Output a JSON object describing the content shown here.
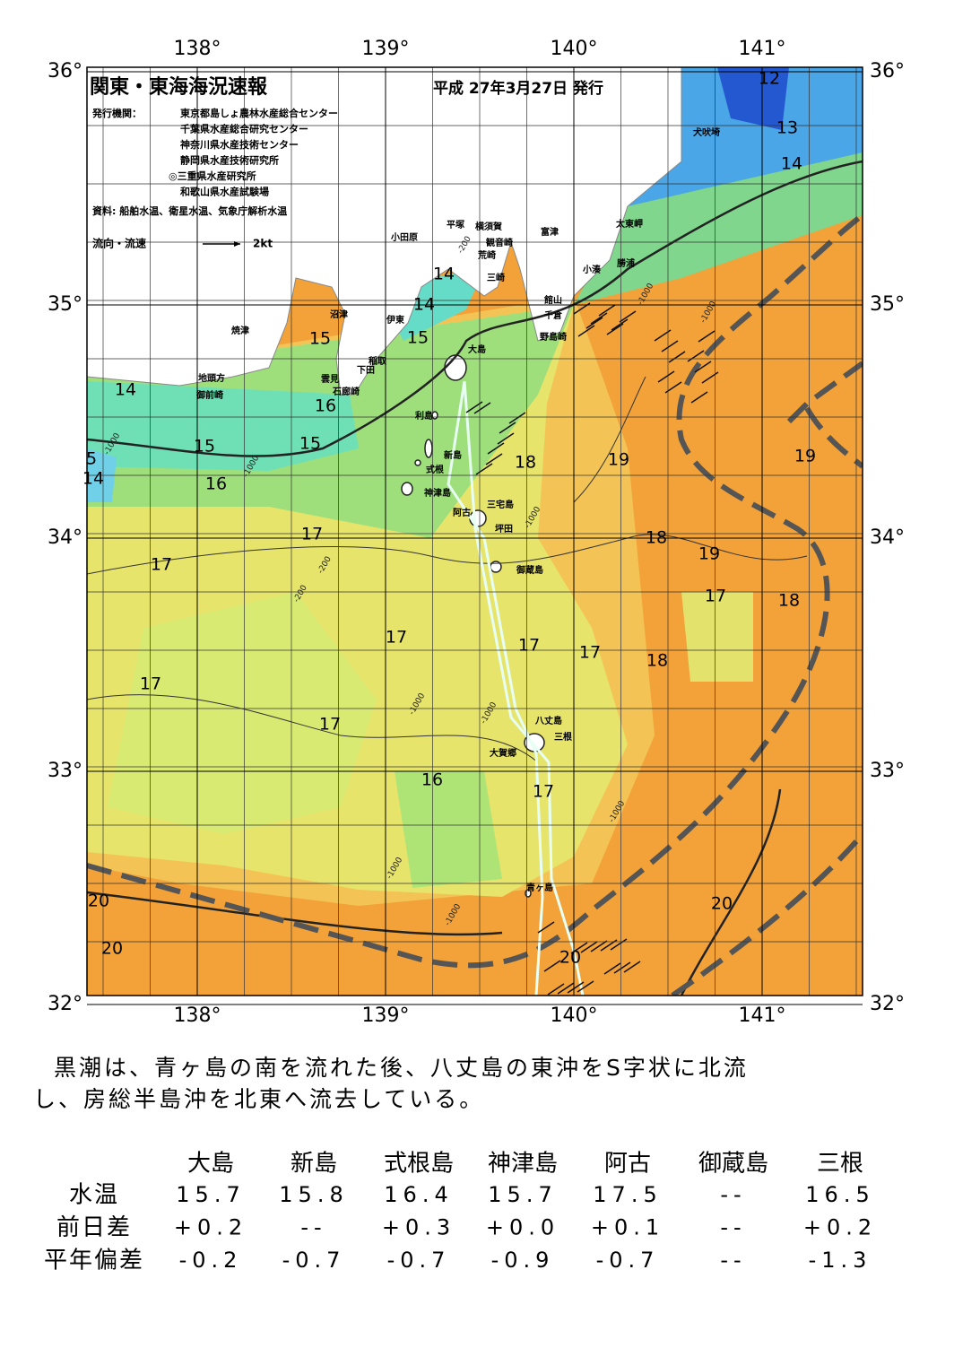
{
  "header": {
    "title": "関東・東海海況速報",
    "issued": "平成 27年3月27日 発行",
    "publisher_label": "発行機関：",
    "publishers": [
      "東京都島しょ農林水産総合センター",
      "千葉県水産総合研究センター",
      "神奈川県水産技術センター",
      "静岡県水産技術研究所",
      "◎三重県水産研究所",
      "和歌山県水産試験場"
    ],
    "sources": "資料: 船舶水温、衛星水温、気象庁解析水温",
    "legend_label": "流向・流速",
    "legend_speed": "2kt"
  },
  "map": {
    "lon_ticks": [
      {
        "value": 138,
        "label": "138°"
      },
      {
        "value": 139,
        "label": "139°"
      },
      {
        "value": 140,
        "label": "140°"
      },
      {
        "value": 141,
        "label": "141°"
      }
    ],
    "lat_ticks": [
      {
        "value": 36,
        "label": "36°"
      },
      {
        "value": 35,
        "label": "35°"
      },
      {
        "value": 34,
        "label": "34°"
      },
      {
        "value": 33,
        "label": "33°"
      },
      {
        "value": 32,
        "label": "32°"
      }
    ],
    "isotherm_labels": [
      "12",
      "13",
      "14",
      "14",
      "14",
      "15",
      "15",
      "14",
      "16",
      "15",
      "15",
      "5",
      "14",
      "16",
      "18",
      "19",
      "19",
      "17",
      "18",
      "17",
      "19",
      "17",
      "18",
      "17",
      "17",
      "17",
      "18",
      "17",
      "17",
      "16",
      "17",
      "20",
      "20",
      "20",
      "20"
    ],
    "depth_labels": [
      "-200",
      "-200",
      "-1000",
      "-1000",
      "-1000",
      "-200",
      "-1000",
      "-1000",
      "-1000",
      "-1000",
      "-1000",
      "-1000",
      "-1000"
    ],
    "places": [
      "犬吠埼",
      "太東岬",
      "勝浦",
      "小湊",
      "富津",
      "横須賀",
      "観音崎",
      "平塚",
      "荒崎",
      "三崎",
      "小田原",
      "館山",
      "千倉",
      "野島崎",
      "沼津",
      "伊東",
      "焼津",
      "稲取",
      "下田",
      "雲見",
      "石廊崎",
      "地頭方",
      "御前崎",
      "大島",
      "利島",
      "新島",
      "式根",
      "神津島",
      "阿古",
      "三宅島",
      "坪田",
      "御蔵島",
      "八丈島",
      "三根",
      "大賀郷",
      "青ヶ島"
    ]
  },
  "summary": {
    "lines": [
      "黒潮は、青ヶ島の南を流れた後、八丈島の東沖をS字状に北流",
      "し、房総半島沖を北東へ流去している。"
    ]
  },
  "table": {
    "columns": [
      "大島",
      "新島",
      "式根島",
      "神津島",
      "阿古",
      "御蔵島",
      "三根"
    ],
    "rows": [
      {
        "label": "水温",
        "cells": [
          "15.7",
          "15.8",
          "16.4",
          "15.7",
          "17.5",
          "--",
          "16.5"
        ]
      },
      {
        "label": "前日差",
        "cells": [
          "+0.2",
          "--",
          "+0.3",
          "+0.0",
          "+0.1",
          "--",
          "+0.2"
        ]
      },
      {
        "label": "平年偏差",
        "cells": [
          "-0.2",
          "-0.7",
          "-0.7",
          "-0.9",
          "-0.7",
          "--",
          "-1.3"
        ]
      }
    ]
  }
}
